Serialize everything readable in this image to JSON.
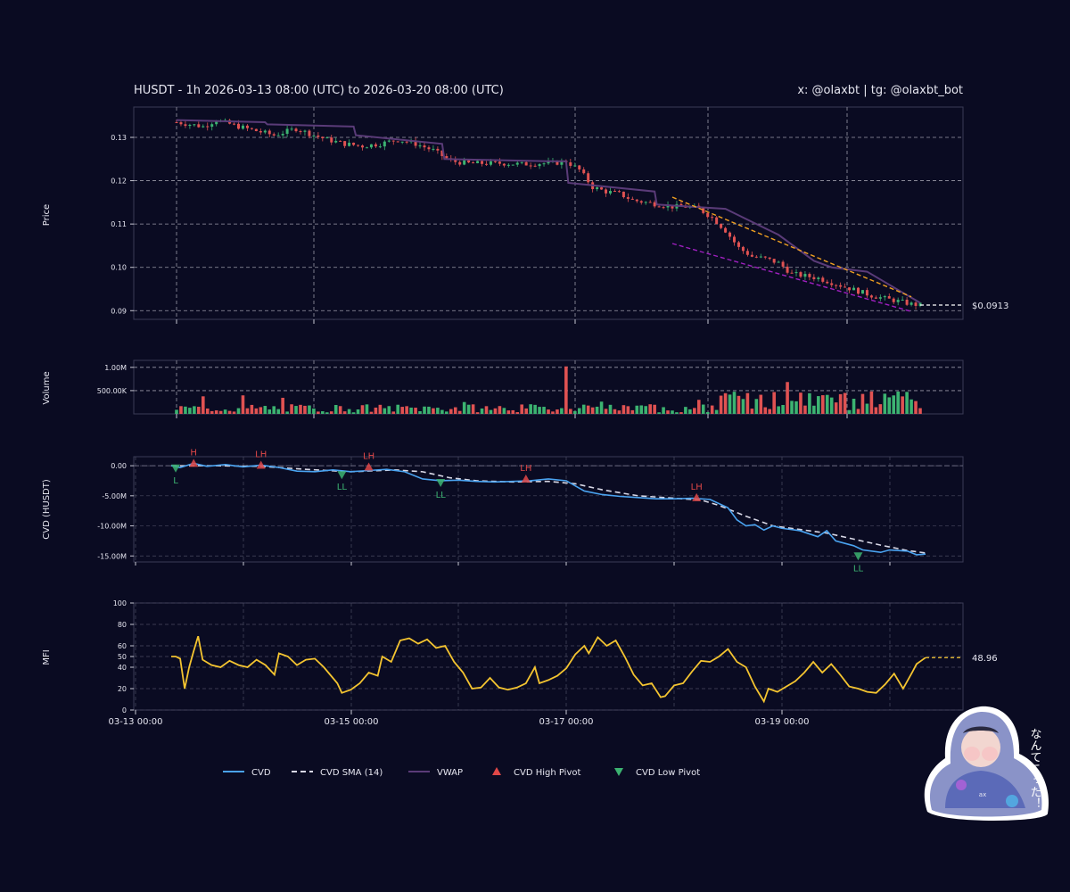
{
  "header": {
    "title": "HUSDT - 1h 2026-03-13 08:00 (UTC) to 2026-03-20 08:00 (UTC)",
    "credit": "x: @olaxbt | tg: @olaxbt_bot"
  },
  "colors": {
    "background": "#0a0b22",
    "up": "#3cb371",
    "down": "#e05252",
    "cvd": "#4aa3f0",
    "cvd_sma": "#d8d8e6",
    "vwap": "#5a3b78",
    "mfi": "#f4c430",
    "upper_trend": "#f0a020",
    "lower_trend": "#a020c0",
    "pivot_high": "#e04848",
    "pivot_low": "#3cb371"
  },
  "sticker": {
    "text": "なんてこった！",
    "badge": "ax"
  },
  "chart_data": [
    {
      "type": "candlestick",
      "ylabel": "Price",
      "ylim": [
        0.088,
        0.137
      ],
      "y_ticks": [
        "0.09",
        "0.10",
        "0.11",
        "0.12",
        "0.13"
      ],
      "y_tick_values": [
        0.09,
        0.1,
        0.11,
        0.12,
        0.13
      ],
      "x_range_hours": [
        0,
        168
      ],
      "last_price_label": "$0.0913",
      "last_price": 0.0913,
      "close_keypoints": [
        [
          0,
          0.1335
        ],
        [
          6,
          0.1325
        ],
        [
          9,
          0.134
        ],
        [
          14,
          0.1325
        ],
        [
          18,
          0.1315
        ],
        [
          22,
          0.1305
        ],
        [
          27,
          0.132
        ],
        [
          31,
          0.1305
        ],
        [
          34,
          0.1295
        ],
        [
          38,
          0.1285
        ],
        [
          42,
          0.128
        ],
        [
          46,
          0.1285
        ],
        [
          50,
          0.1295
        ],
        [
          54,
          0.1285
        ],
        [
          58,
          0.127
        ],
        [
          62,
          0.1245
        ],
        [
          66,
          0.124
        ],
        [
          70,
          0.124
        ],
        [
          74,
          0.124
        ],
        [
          78,
          0.1238
        ],
        [
          82,
          0.124
        ],
        [
          85,
          0.124
        ],
        [
          88,
          0.1245
        ],
        [
          91,
          0.1225
        ],
        [
          94,
          0.1185
        ],
        [
          97,
          0.1175
        ],
        [
          100,
          0.117
        ],
        [
          103,
          0.1155
        ],
        [
          106,
          0.115
        ],
        [
          109,
          0.1145
        ],
        [
          112,
          0.114
        ],
        [
          115,
          0.114
        ],
        [
          118,
          0.1135
        ],
        [
          121,
          0.1115
        ],
        [
          124,
          0.1085
        ],
        [
          127,
          0.1045
        ],
        [
          130,
          0.1025
        ],
        [
          133,
          0.102
        ],
        [
          136,
          0.101
        ],
        [
          139,
          0.0985
        ],
        [
          142,
          0.098
        ],
        [
          145,
          0.0975
        ],
        [
          148,
          0.0965
        ],
        [
          151,
          0.0955
        ],
        [
          154,
          0.0945
        ],
        [
          157,
          0.0935
        ],
        [
          160,
          0.0928
        ],
        [
          163,
          0.0922
        ],
        [
          166,
          0.0915
        ],
        [
          168,
          0.0913
        ]
      ],
      "vwap": [
        [
          0,
          0.134
        ],
        [
          20,
          0.1335
        ],
        [
          20.5,
          0.133
        ],
        [
          40,
          0.1325
        ],
        [
          40.5,
          0.1305
        ],
        [
          60,
          0.1285
        ],
        [
          60.5,
          0.125
        ],
        [
          84,
          0.1245
        ],
        [
          88,
          0.1245
        ],
        [
          88.5,
          0.1195
        ],
        [
          108,
          0.1175
        ],
        [
          108.5,
          0.1145
        ],
        [
          124,
          0.1135
        ],
        [
          128,
          0.1115
        ],
        [
          136,
          0.1075
        ],
        [
          144,
          0.1015
        ],
        [
          148,
          0.1
        ],
        [
          156,
          0.099
        ],
        [
          168,
          0.0918
        ]
      ],
      "upper_trendline": [
        [
          112,
          0.1162
        ],
        [
          166,
          0.0932
        ]
      ],
      "lower_trendline": [
        [
          112,
          0.1055
        ],
        [
          166,
          0.0898
        ]
      ]
    },
    {
      "type": "bar",
      "ylabel": "Volume",
      "ylim": [
        0,
        1150000
      ],
      "y_ticks": [
        "500.00K",
        "1.00M"
      ],
      "y_tick_values": [
        500000,
        1000000
      ],
      "peak_volume": 1020000,
      "peak_hour": 88
    },
    {
      "type": "line",
      "ylabel": "CVD (HUSDT)",
      "ylim": [
        -16000000,
        1500000
      ],
      "y_ticks": [
        "0.00",
        "-5.00M",
        "-10.00M",
        "-15.00M"
      ],
      "y_tick_values": [
        0,
        -5000000,
        -10000000,
        -15000000
      ],
      "series": [
        {
          "name": "CVD",
          "points": [
            [
              0,
              0
            ],
            [
              2,
              -300000
            ],
            [
              5,
              400000
            ],
            [
              8,
              -100000
            ],
            [
              12,
              200000
            ],
            [
              16,
              -200000
            ],
            [
              20,
              100000
            ],
            [
              24,
              -300000
            ],
            [
              28,
              -900000
            ],
            [
              32,
              -1000000
            ],
            [
              36,
              -700000
            ],
            [
              40,
              -1000000
            ],
            [
              44,
              -800000
            ],
            [
              48,
              -600000
            ],
            [
              52,
              -1000000
            ],
            [
              56,
              -2200000
            ],
            [
              60,
              -2500000
            ],
            [
              64,
              -2400000
            ],
            [
              68,
              -2600000
            ],
            [
              72,
              -2700000
            ],
            [
              76,
              -2600000
            ],
            [
              80,
              -2500000
            ],
            [
              84,
              -2200000
            ],
            [
              88,
              -2500000
            ],
            [
              92,
              -4200000
            ],
            [
              96,
              -4800000
            ],
            [
              100,
              -5100000
            ],
            [
              104,
              -5300000
            ],
            [
              108,
              -5500000
            ],
            [
              112,
              -5500000
            ],
            [
              116,
              -5400000
            ],
            [
              120,
              -5600000
            ],
            [
              124,
              -7000000
            ],
            [
              126,
              -9000000
            ],
            [
              128,
              -10000000
            ],
            [
              130,
              -9800000
            ],
            [
              132,
              -10700000
            ],
            [
              134,
              -10000000
            ],
            [
              136,
              -10400000
            ],
            [
              140,
              -10800000
            ],
            [
              144,
              -11800000
            ],
            [
              146,
              -10800000
            ],
            [
              148,
              -12500000
            ],
            [
              152,
              -13300000
            ],
            [
              154,
              -14000000
            ],
            [
              158,
              -14400000
            ],
            [
              160,
              -14000000
            ],
            [
              164,
              -14200000
            ],
            [
              166,
              -14800000
            ],
            [
              168,
              -14700000
            ]
          ]
        },
        {
          "name": "CVD SMA (14)",
          "points": [
            [
              0,
              0
            ],
            [
              10,
              0
            ],
            [
              20,
              -100000
            ],
            [
              30,
              -600000
            ],
            [
              40,
              -1000000
            ],
            [
              50,
              -700000
            ],
            [
              56,
              -1000000
            ],
            [
              62,
              -2000000
            ],
            [
              68,
              -2500000
            ],
            [
              76,
              -2700000
            ],
            [
              84,
              -2600000
            ],
            [
              90,
              -3000000
            ],
            [
              96,
              -4000000
            ],
            [
              104,
              -5000000
            ],
            [
              112,
              -5400000
            ],
            [
              118,
              -5700000
            ],
            [
              122,
              -6600000
            ],
            [
              128,
              -8400000
            ],
            [
              134,
              -10000000
            ],
            [
              140,
              -10600000
            ],
            [
              146,
              -11200000
            ],
            [
              152,
              -12200000
            ],
            [
              158,
              -13200000
            ],
            [
              164,
              -14100000
            ],
            [
              168,
              -14500000
            ]
          ]
        }
      ],
      "pivots": [
        {
          "kind": "high",
          "label": "H",
          "x": 5,
          "y": 400000
        },
        {
          "kind": "high",
          "label": "LH",
          "x": 20,
          "y": 100000
        },
        {
          "kind": "high",
          "label": "LH",
          "x": 44,
          "y": -200000
        },
        {
          "kind": "high",
          "label": "LH",
          "x": 79,
          "y": -2200000
        },
        {
          "kind": "high",
          "label": "LH",
          "x": 117,
          "y": -5300000
        },
        {
          "kind": "low",
          "label": "L",
          "x": 1,
          "y": -400000
        },
        {
          "kind": "low",
          "label": "LL",
          "x": 38,
          "y": -1500000
        },
        {
          "kind": "low",
          "label": "LL",
          "x": 60,
          "y": -2800000
        },
        {
          "kind": "low",
          "label": "LL",
          "x": 153,
          "y": -15000000
        }
      ]
    },
    {
      "type": "line",
      "ylabel": "MFI",
      "ylim": [
        0,
        100
      ],
      "y_ticks": [
        "0",
        "20",
        "40",
        "50",
        "60",
        "80",
        "100"
      ],
      "y_tick_values": [
        0,
        20,
        40,
        50,
        60,
        80,
        100
      ],
      "last_value_label": "48.96",
      "last_value": 48.96,
      "series": [
        {
          "name": "MFI",
          "points": [
            [
              0,
              50
            ],
            [
              1,
              50
            ],
            [
              2,
              48
            ],
            [
              3,
              20
            ],
            [
              4,
              40
            ],
            [
              5,
              55
            ],
            [
              6,
              69
            ],
            [
              7,
              47
            ],
            [
              9,
              42
            ],
            [
              11,
              40
            ],
            [
              13,
              46
            ],
            [
              15,
              42
            ],
            [
              17,
              40
            ],
            [
              19,
              47
            ],
            [
              21,
              42
            ],
            [
              23,
              33
            ],
            [
              24,
              53
            ],
            [
              26,
              50
            ],
            [
              28,
              42
            ],
            [
              30,
              47
            ],
            [
              32,
              48
            ],
            [
              34,
              40
            ],
            [
              36,
              30
            ],
            [
              37,
              25
            ],
            [
              38,
              16
            ],
            [
              40,
              19
            ],
            [
              42,
              25
            ],
            [
              44,
              35
            ],
            [
              46,
              32
            ],
            [
              47,
              50
            ],
            [
              49,
              45
            ],
            [
              51,
              65
            ],
            [
              53,
              67
            ],
            [
              55,
              62
            ],
            [
              57,
              66
            ],
            [
              59,
              58
            ],
            [
              61,
              60
            ],
            [
              63,
              45
            ],
            [
              65,
              35
            ],
            [
              67,
              20
            ],
            [
              69,
              21
            ],
            [
              71,
              30
            ],
            [
              73,
              21
            ],
            [
              75,
              19
            ],
            [
              77,
              21
            ],
            [
              79,
              25
            ],
            [
              81,
              40
            ],
            [
              82,
              25
            ],
            [
              84,
              28
            ],
            [
              86,
              32
            ],
            [
              88,
              39
            ],
            [
              90,
              52
            ],
            [
              92,
              60
            ],
            [
              93,
              53
            ],
            [
              95,
              68
            ],
            [
              97,
              60
            ],
            [
              99,
              65
            ],
            [
              101,
              50
            ],
            [
              103,
              33
            ],
            [
              105,
              23
            ],
            [
              107,
              25
            ],
            [
              109,
              12
            ],
            [
              110,
              13
            ],
            [
              112,
              23
            ],
            [
              114,
              25
            ],
            [
              116,
              36
            ],
            [
              118,
              46
            ],
            [
              120,
              45
            ],
            [
              122,
              50
            ],
            [
              124,
              57
            ],
            [
              126,
              45
            ],
            [
              128,
              40
            ],
            [
              130,
              22
            ],
            [
              131,
              15
            ],
            [
              132,
              8
            ],
            [
              133,
              20
            ],
            [
              135,
              17
            ],
            [
              137,
              22
            ],
            [
              139,
              27
            ],
            [
              141,
              35
            ],
            [
              143,
              45
            ],
            [
              145,
              35
            ],
            [
              147,
              43
            ],
            [
              149,
              33
            ],
            [
              151,
              22
            ],
            [
              153,
              20
            ],
            [
              155,
              17
            ],
            [
              157,
              16
            ],
            [
              159,
              24
            ],
            [
              161,
              34
            ],
            [
              163,
              20
            ],
            [
              165,
              35
            ],
            [
              166,
              43
            ],
            [
              167,
              46
            ],
            [
              168,
              49
            ]
          ]
        }
      ]
    }
  ],
  "x_ticks": [
    "03-13 00:00",
    "03-15 00:00",
    "03-17 00:00",
    "03-19 00:00"
  ],
  "legend": [
    {
      "key": "cvd",
      "label": "CVD"
    },
    {
      "key": "cvd_sma",
      "label": "CVD SMA (14)"
    },
    {
      "key": "vwap",
      "label": "VWAP"
    },
    {
      "key": "pivot_high",
      "label": "CVD High Pivot"
    },
    {
      "key": "pivot_low",
      "label": "CVD Low Pivot"
    }
  ]
}
